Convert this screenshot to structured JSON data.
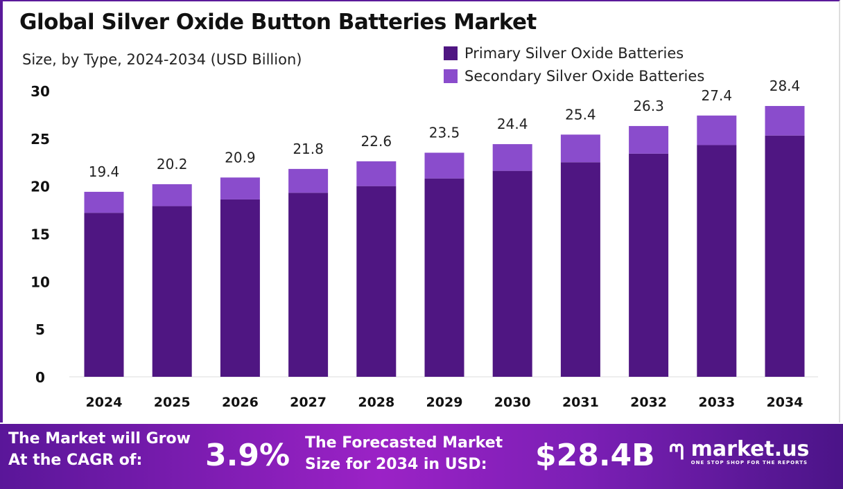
{
  "title": "Global Silver Oxide Button Batteries Market",
  "subtitle": "Size, by Type, 2024-2034 (USD Billion)",
  "chart_data": {
    "type": "bar",
    "stacked": true,
    "categories": [
      "2024",
      "2025",
      "2026",
      "2027",
      "2028",
      "2029",
      "2030",
      "2031",
      "2032",
      "2033",
      "2034"
    ],
    "series": [
      {
        "name": "Primary Silver Oxide Batteries",
        "color": "#4f1682",
        "values": [
          17.2,
          17.9,
          18.6,
          19.3,
          20.0,
          20.8,
          21.6,
          22.5,
          23.4,
          24.3,
          25.3
        ]
      },
      {
        "name": "Secondary Silver Oxide Batteries",
        "color": "#8a4ccc",
        "values": [
          2.2,
          2.3,
          2.3,
          2.5,
          2.6,
          2.7,
          2.8,
          2.9,
          2.9,
          3.1,
          3.1
        ]
      }
    ],
    "totals": [
      "19.4",
      "20.2",
      "20.9",
      "21.8",
      "22.6",
      "23.5",
      "24.4",
      "25.4",
      "26.3",
      "27.4",
      "28.4"
    ],
    "yticks": [
      "0",
      "5",
      "10",
      "15",
      "20",
      "25",
      "30"
    ],
    "ylim": [
      0,
      30
    ],
    "grid": false,
    "legend": "top-right"
  },
  "banner": {
    "cagr_label_1": "The Market will Grow",
    "cagr_label_2": "At the CAGR of:",
    "cagr_value": "3.9%",
    "forecast_label_1": "The Forecasted Market",
    "forecast_label_2": "Size for 2034 in USD:",
    "forecast_value": "$28.4B",
    "logo_name": "market.us",
    "logo_tagline": "ONE STOP SHOP FOR THE REPORTS"
  }
}
